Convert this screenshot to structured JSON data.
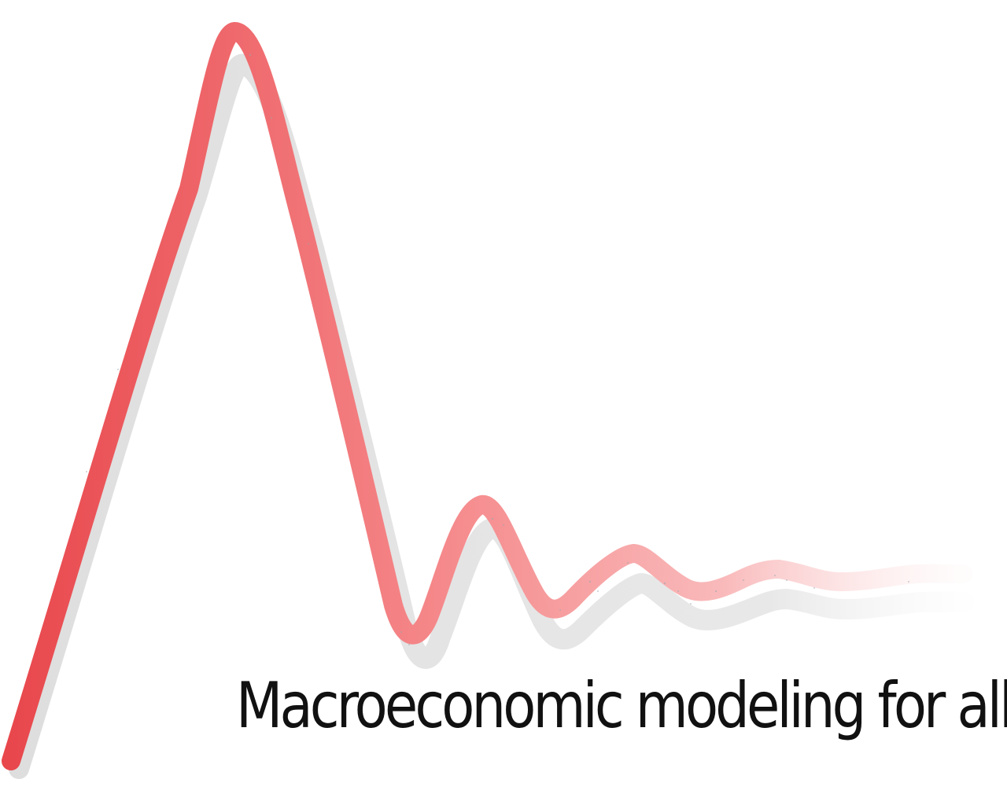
{
  "tagline": "Macroeconomic modeling for all",
  "colors": {
    "curve_start": "#e8474c",
    "curve_mid": "#f5888a",
    "curve_end": "#fde6e7",
    "shadow": "#dedede",
    "text": "#111111",
    "background": "#ffffff"
  }
}
